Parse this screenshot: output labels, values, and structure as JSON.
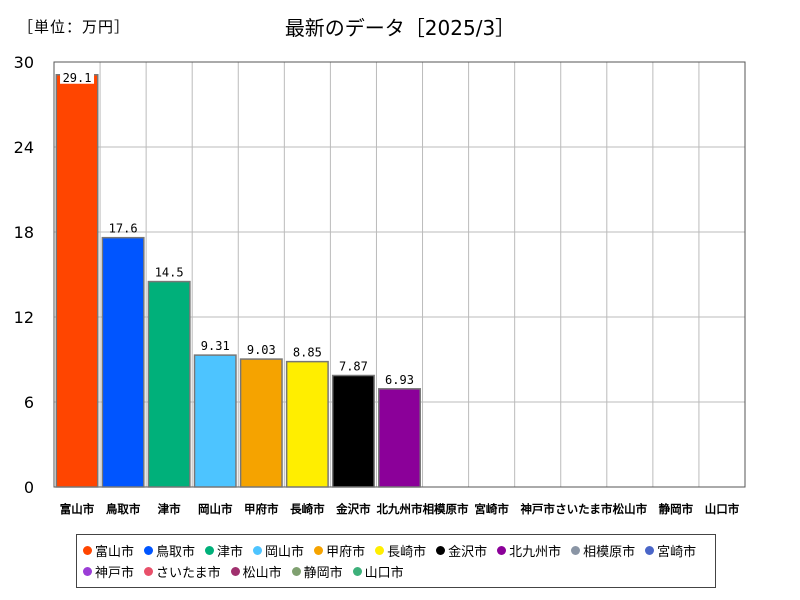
{
  "unit_label": "［単位：万円］",
  "chart_data": {
    "type": "bar",
    "title": "最新のデータ［2025/3］",
    "ylim": [
      0,
      30
    ],
    "yticks": [
      0,
      6,
      12,
      18,
      24,
      30
    ],
    "grid": true,
    "legend_position": "bottom",
    "categories": [
      "富山市",
      "鳥取市",
      "津市",
      "岡山市",
      "甲府市",
      "長崎市",
      "金沢市",
      "北九州市",
      "相模原市",
      "宮崎市",
      "神戸市",
      "さいたま市",
      "松山市",
      "静岡市",
      "山口市"
    ],
    "values": [
      29.1,
      17.6,
      14.5,
      9.31,
      9.03,
      8.85,
      7.87,
      6.93,
      null,
      null,
      null,
      null,
      null,
      null,
      null
    ],
    "value_labels": [
      "29.1",
      "17.6",
      "14.5",
      "9.31",
      "9.03",
      "8.85",
      "7.87",
      "6.93",
      "",
      "",
      "",
      "",
      "",
      "",
      ""
    ],
    "colors": [
      "#ff4500",
      "#0055ff",
      "#00b07a",
      "#4dc4ff",
      "#f5a300",
      "#ffee00",
      "#000000",
      "#8b0099",
      "#8a95a5",
      "#4a66c8",
      "#9b3dd6",
      "#e8506a",
      "#a0306e",
      "#7fa070",
      "#3db07a"
    ]
  }
}
